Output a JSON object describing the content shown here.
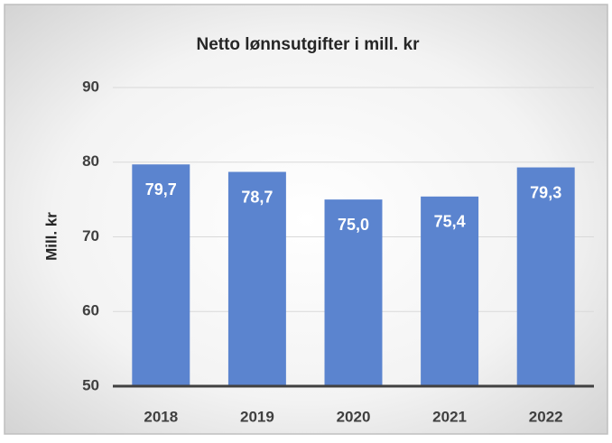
{
  "chart_data": {
    "type": "bar",
    "title": "Netto lønnsutgifter i mill. kr",
    "ylabel": "Mill. kr",
    "categories": [
      "2018",
      "2019",
      "2020",
      "2021",
      "2022"
    ],
    "values": [
      79.7,
      78.7,
      75.0,
      75.4,
      79.3
    ],
    "value_labels": [
      "79,7",
      "78,7",
      "75,0",
      "75,4",
      "79,3"
    ],
    "color": "#5b84cf",
    "ylim": [
      50,
      90
    ],
    "yticks": [
      50,
      60,
      70,
      80,
      90
    ],
    "grid": true
  }
}
